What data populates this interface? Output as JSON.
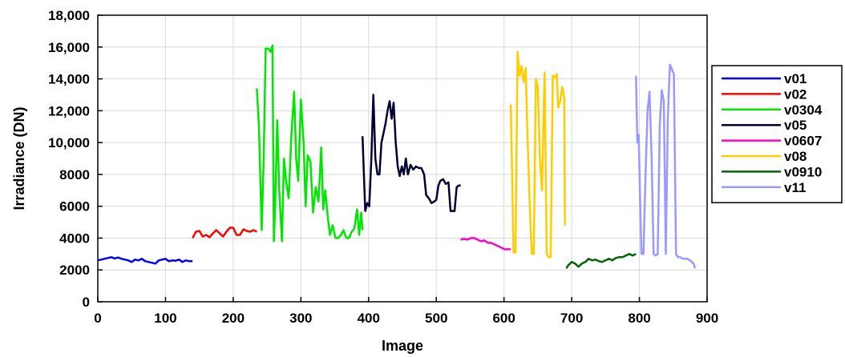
{
  "chart_data": {
    "type": "line",
    "title": "",
    "xlabel": "Image",
    "ylabel": "Irradiance (DN)",
    "xlim": [
      0,
      900
    ],
    "ylim": [
      0,
      18000
    ],
    "xticks": [
      0,
      100,
      200,
      300,
      400,
      500,
      600,
      700,
      800,
      900
    ],
    "xtick_labels": [
      "0",
      "100",
      "200",
      "300",
      "400",
      "500",
      "600",
      "700",
      "800",
      "900"
    ],
    "yticks": [
      0,
      2000,
      4000,
      6000,
      8000,
      10000,
      12000,
      14000,
      16000,
      18000
    ],
    "ytick_labels": [
      "0",
      "2000",
      "4000",
      "6000",
      "8000",
      "10,000",
      "12,000",
      "14,000",
      "16,000",
      "18,000"
    ],
    "grid": true,
    "legend_position": "right",
    "series": [
      {
        "name": "v01",
        "color": "#0000ff",
        "points": [
          [
            0,
            2600
          ],
          [
            5,
            2650
          ],
          [
            10,
            2700
          ],
          [
            15,
            2750
          ],
          [
            20,
            2800
          ],
          [
            25,
            2720
          ],
          [
            30,
            2780
          ],
          [
            35,
            2700
          ],
          [
            40,
            2650
          ],
          [
            45,
            2600
          ],
          [
            50,
            2500
          ],
          [
            55,
            2650
          ],
          [
            60,
            2600
          ],
          [
            65,
            2700
          ],
          [
            70,
            2550
          ],
          [
            75,
            2500
          ],
          [
            80,
            2450
          ],
          [
            85,
            2400
          ],
          [
            90,
            2600
          ],
          [
            95,
            2650
          ],
          [
            100,
            2700
          ],
          [
            105,
            2550
          ],
          [
            110,
            2600
          ],
          [
            115,
            2580
          ],
          [
            120,
            2650
          ],
          [
            125,
            2500
          ],
          [
            130,
            2600
          ],
          [
            135,
            2550
          ],
          [
            140,
            2550
          ]
        ]
      },
      {
        "name": "v02",
        "color": "#ff0000",
        "points": [
          [
            140,
            4000
          ],
          [
            145,
            4400
          ],
          [
            150,
            4450
          ],
          [
            155,
            4100
          ],
          [
            160,
            4200
          ],
          [
            165,
            4050
          ],
          [
            170,
            4300
          ],
          [
            175,
            4500
          ],
          [
            180,
            4300
          ],
          [
            185,
            4100
          ],
          [
            190,
            4400
          ],
          [
            195,
            4650
          ],
          [
            200,
            4650
          ],
          [
            205,
            4200
          ],
          [
            210,
            4200
          ],
          [
            215,
            4550
          ],
          [
            220,
            4450
          ],
          [
            225,
            4400
          ],
          [
            230,
            4500
          ],
          [
            235,
            4400
          ]
        ]
      },
      {
        "name": "v0304",
        "color": "#00e600",
        "points": [
          [
            235,
            13400
          ],
          [
            238,
            11000
          ],
          [
            240,
            7800
          ],
          [
            242,
            4500
          ],
          [
            245,
            9000
          ],
          [
            248,
            15900
          ],
          [
            252,
            15900
          ],
          [
            255,
            15700
          ],
          [
            258,
            16100
          ],
          [
            260,
            3800
          ],
          [
            262,
            6000
          ],
          [
            265,
            11400
          ],
          [
            268,
            7000
          ],
          [
            272,
            3800
          ],
          [
            275,
            9000
          ],
          [
            278,
            7600
          ],
          [
            282,
            6500
          ],
          [
            286,
            10500
          ],
          [
            290,
            13200
          ],
          [
            293,
            9000
          ],
          [
            296,
            7600
          ],
          [
            300,
            12700
          ],
          [
            304,
            10000
          ],
          [
            307,
            6000
          ],
          [
            310,
            9200
          ],
          [
            314,
            8800
          ],
          [
            318,
            5600
          ],
          [
            322,
            7200
          ],
          [
            326,
            6300
          ],
          [
            330,
            9700
          ],
          [
            333,
            5800
          ],
          [
            336,
            7000
          ],
          [
            340,
            5200
          ],
          [
            343,
            4200
          ],
          [
            347,
            4800
          ],
          [
            351,
            4000
          ],
          [
            355,
            4000
          ],
          [
            359,
            4200
          ],
          [
            363,
            4500
          ],
          [
            367,
            4000
          ],
          [
            371,
            4000
          ],
          [
            375,
            4400
          ],
          [
            379,
            4600
          ],
          [
            383,
            5800
          ],
          [
            386,
            4200
          ],
          [
            389,
            5600
          ],
          [
            391,
            4500
          ]
        ]
      },
      {
        "name": "v05",
        "color": "#000033",
        "points": [
          [
            391,
            10400
          ],
          [
            393,
            8000
          ],
          [
            395,
            5700
          ],
          [
            398,
            6200
          ],
          [
            401,
            6000
          ],
          [
            404,
            9000
          ],
          [
            407,
            13000
          ],
          [
            410,
            9000
          ],
          [
            413,
            8000
          ],
          [
            416,
            8000
          ],
          [
            419,
            10000
          ],
          [
            422,
            10600
          ],
          [
            425,
            11200
          ],
          [
            428,
            12000
          ],
          [
            431,
            12600
          ],
          [
            434,
            11500
          ],
          [
            437,
            12500
          ],
          [
            440,
            10000
          ],
          [
            443,
            8500
          ],
          [
            446,
            7900
          ],
          [
            449,
            8500
          ],
          [
            452,
            8000
          ],
          [
            455,
            9000
          ],
          [
            458,
            8000
          ],
          [
            462,
            8600
          ],
          [
            466,
            8300
          ],
          [
            470,
            8500
          ],
          [
            474,
            8400
          ],
          [
            478,
            8400
          ],
          [
            482,
            8000
          ],
          [
            485,
            6700
          ],
          [
            489,
            6500
          ],
          [
            493,
            6200
          ],
          [
            497,
            6300
          ],
          [
            500,
            6400
          ],
          [
            503,
            7300
          ],
          [
            506,
            7600
          ],
          [
            510,
            7700
          ],
          [
            514,
            7400
          ],
          [
            518,
            7500
          ],
          [
            521,
            5700
          ],
          [
            524,
            5700
          ],
          [
            527,
            5700
          ],
          [
            530,
            7200
          ],
          [
            533,
            7300
          ],
          [
            536,
            7300
          ]
        ]
      },
      {
        "name": "v0607",
        "color": "#ff00cc",
        "points": [
          [
            536,
            3900
          ],
          [
            541,
            3950
          ],
          [
            546,
            3900
          ],
          [
            551,
            4000
          ],
          [
            556,
            4000
          ],
          [
            561,
            3900
          ],
          [
            566,
            3800
          ],
          [
            571,
            3850
          ],
          [
            576,
            3700
          ],
          [
            581,
            3700
          ],
          [
            586,
            3600
          ],
          [
            591,
            3500
          ],
          [
            596,
            3400
          ],
          [
            601,
            3300
          ],
          [
            606,
            3300
          ],
          [
            610,
            3300
          ]
        ]
      },
      {
        "name": "v08",
        "color": "#ffcc00",
        "points": [
          [
            610,
            12400
          ],
          [
            612,
            8000
          ],
          [
            614,
            3100
          ],
          [
            617,
            3100
          ],
          [
            620,
            15700
          ],
          [
            623,
            14200
          ],
          [
            626,
            14800
          ],
          [
            629,
            13800
          ],
          [
            632,
            14700
          ],
          [
            635,
            10000
          ],
          [
            638,
            6000
          ],
          [
            641,
            3000
          ],
          [
            644,
            3000
          ],
          [
            647,
            14000
          ],
          [
            650,
            13500
          ],
          [
            653,
            9000
          ],
          [
            656,
            7000
          ],
          [
            660,
            14400
          ],
          [
            663,
            3000
          ],
          [
            666,
            2800
          ],
          [
            669,
            2800
          ],
          [
            672,
            14200
          ],
          [
            675,
            14100
          ],
          [
            678,
            14300
          ],
          [
            680,
            12200
          ],
          [
            683,
            12600
          ],
          [
            686,
            13500
          ],
          [
            689,
            12800
          ],
          [
            690,
            4800
          ]
        ]
      },
      {
        "name": "v0910",
        "color": "#006600",
        "points": [
          [
            692,
            2100
          ],
          [
            695,
            2300
          ],
          [
            700,
            2500
          ],
          [
            705,
            2400
          ],
          [
            710,
            2200
          ],
          [
            715,
            2400
          ],
          [
            720,
            2500
          ],
          [
            725,
            2700
          ],
          [
            730,
            2600
          ],
          [
            735,
            2650
          ],
          [
            740,
            2550
          ],
          [
            745,
            2500
          ],
          [
            750,
            2600
          ],
          [
            755,
            2700
          ],
          [
            760,
            2600
          ],
          [
            765,
            2750
          ],
          [
            770,
            2800
          ],
          [
            775,
            2800
          ],
          [
            780,
            2900
          ],
          [
            785,
            3000
          ],
          [
            790,
            2900
          ],
          [
            795,
            3000
          ]
        ]
      },
      {
        "name": "v11",
        "color": "#9999ff",
        "points": [
          [
            795,
            14200
          ],
          [
            797,
            10000
          ],
          [
            799,
            10500
          ],
          [
            801,
            6500
          ],
          [
            803,
            3000
          ],
          [
            806,
            3000
          ],
          [
            809,
            8000
          ],
          [
            812,
            12000
          ],
          [
            815,
            13200
          ],
          [
            818,
            9000
          ],
          [
            821,
            3000
          ],
          [
            824,
            2900
          ],
          [
            827,
            3000
          ],
          [
            830,
            11000
          ],
          [
            833,
            13300
          ],
          [
            836,
            12600
          ],
          [
            839,
            3000
          ],
          [
            842,
            11600
          ],
          [
            845,
            14900
          ],
          [
            848,
            14600
          ],
          [
            851,
            14300
          ],
          [
            854,
            3000
          ],
          [
            857,
            2800
          ],
          [
            860,
            2800
          ],
          [
            865,
            2700
          ],
          [
            870,
            2700
          ],
          [
            875,
            2600
          ],
          [
            880,
            2400
          ],
          [
            882,
            2100
          ]
        ]
      }
    ]
  }
}
